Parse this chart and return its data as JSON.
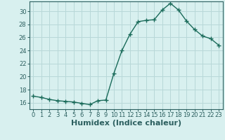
{
  "x": [
    0,
    1,
    2,
    3,
    4,
    5,
    6,
    7,
    8,
    9,
    10,
    11,
    12,
    13,
    14,
    15,
    16,
    17,
    18,
    19,
    20,
    21,
    22,
    23
  ],
  "y": [
    17.0,
    16.8,
    16.5,
    16.3,
    16.2,
    16.1,
    15.9,
    15.7,
    16.3,
    16.4,
    20.5,
    24.0,
    26.5,
    28.4,
    28.6,
    28.7,
    30.2,
    31.2,
    30.2,
    28.5,
    27.2,
    26.2,
    25.8,
    24.8
  ],
  "line_color": "#1a6b5a",
  "marker": "+",
  "marker_size": 4,
  "marker_linewidth": 1.0,
  "bg_color": "#d8f0ef",
  "grid_color": "#b8d8d8",
  "xlabel": "Humidex (Indice chaleur)",
  "xlim": [
    -0.5,
    23.5
  ],
  "ylim": [
    15.0,
    31.5
  ],
  "yticks": [
    16,
    18,
    20,
    22,
    24,
    26,
    28,
    30
  ],
  "xticks": [
    0,
    1,
    2,
    3,
    4,
    5,
    6,
    7,
    8,
    9,
    10,
    11,
    12,
    13,
    14,
    15,
    16,
    17,
    18,
    19,
    20,
    21,
    22,
    23
  ],
  "tick_label_fontsize": 6,
  "xlabel_fontsize": 8,
  "axis_color": "#2d6060",
  "spine_color": "#2d6060",
  "line_width": 1.0
}
